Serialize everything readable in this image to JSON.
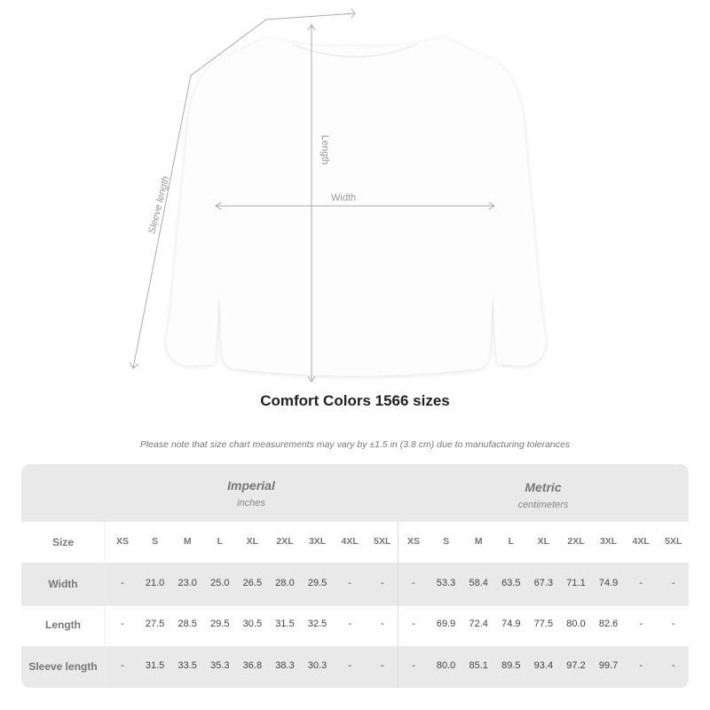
{
  "illustration": {
    "labels": {
      "length": "Length",
      "width": "Width",
      "sleeve": "Sleeve length"
    }
  },
  "title": "Comfort Colors 1566 sizes",
  "note": "Please note that size chart measurements may vary by ±1.5 in (3.8 cm) due to manufacturing tolerances",
  "table": {
    "imperial": {
      "title": "Imperial",
      "unit": "inches"
    },
    "metric": {
      "title": "Metric",
      "unit": "centimeters"
    },
    "size_label": "Size",
    "sizes": [
      "XS",
      "S",
      "M",
      "L",
      "XL",
      "2XL",
      "3XL",
      "4XL",
      "5XL"
    ],
    "rows": [
      {
        "label": "Width",
        "imperial": [
          "-",
          "21.0",
          "23.0",
          "25.0",
          "26.5",
          "28.0",
          "29.5",
          "-",
          "-"
        ],
        "metric": [
          "-",
          "53.3",
          "58.4",
          "63.5",
          "67.3",
          "71.1",
          "74.9",
          "-",
          "-"
        ]
      },
      {
        "label": "Length",
        "imperial": [
          "-",
          "27.5",
          "28.5",
          "29.5",
          "30.5",
          "31.5",
          "32.5",
          "-",
          "-"
        ],
        "metric": [
          "-",
          "69.9",
          "72.4",
          "74.9",
          "77.5",
          "80.0",
          "82.6",
          "-",
          "-"
        ]
      },
      {
        "label": "Sleeve length",
        "imperial": [
          "-",
          "31.5",
          "33.5",
          "35.3",
          "36.8",
          "38.3",
          "30.3",
          "-",
          "-"
        ],
        "metric": [
          "-",
          "80.0",
          "85.1",
          "89.5",
          "93.4",
          "97.2",
          "99.7",
          "-",
          "-"
        ]
      }
    ]
  }
}
